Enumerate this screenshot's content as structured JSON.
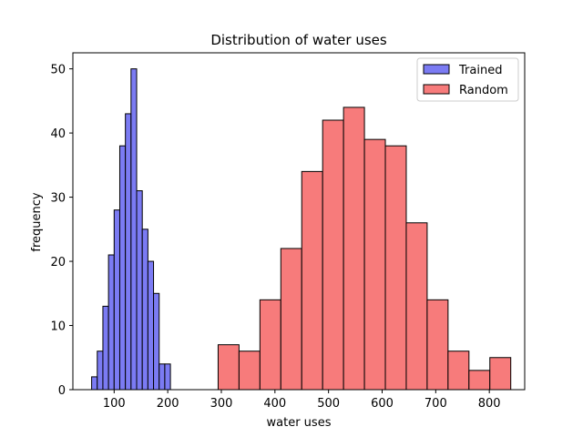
{
  "chart_data": {
    "type": "bar",
    "title": "Distribution of water uses",
    "xlabel": "water uses",
    "ylabel": "frequency",
    "xlim": [
      23,
      866
    ],
    "ylim": [
      0,
      52.5
    ],
    "xticks": [
      100,
      200,
      300,
      400,
      500,
      600,
      700,
      800
    ],
    "yticks": [
      0,
      10,
      20,
      30,
      40,
      50
    ],
    "grid": false,
    "legend_position": "top-right",
    "series": [
      {
        "name": "Trained",
        "color": "#7b7bf3",
        "edgecolor": "#000000",
        "bins": [
          {
            "x0": 58.0,
            "x1": 68.5,
            "count": 2
          },
          {
            "x0": 68.5,
            "x1": 79.0,
            "count": 6
          },
          {
            "x0": 79.0,
            "x1": 89.5,
            "count": 13
          },
          {
            "x0": 89.5,
            "x1": 100.0,
            "count": 21
          },
          {
            "x0": 100.0,
            "x1": 110.5,
            "count": 28
          },
          {
            "x0": 110.5,
            "x1": 121.0,
            "count": 38
          },
          {
            "x0": 121.0,
            "x1": 131.5,
            "count": 43
          },
          {
            "x0": 131.5,
            "x1": 142.0,
            "count": 50
          },
          {
            "x0": 142.0,
            "x1": 152.5,
            "count": 31
          },
          {
            "x0": 152.5,
            "x1": 163.0,
            "count": 25
          },
          {
            "x0": 163.0,
            "x1": 173.5,
            "count": 20
          },
          {
            "x0": 173.5,
            "x1": 184.0,
            "count": 15
          },
          {
            "x0": 184.0,
            "x1": 194.5,
            "count": 4
          },
          {
            "x0": 194.5,
            "x1": 205.0,
            "count": 4
          }
        ]
      },
      {
        "name": "Random",
        "color": "#f77b7b",
        "edgecolor": "#000000",
        "bins": [
          {
            "x0": 294,
            "x1": 333,
            "count": 7
          },
          {
            "x0": 333,
            "x1": 372,
            "count": 6
          },
          {
            "x0": 372,
            "x1": 411,
            "count": 14
          },
          {
            "x0": 411,
            "x1": 450,
            "count": 22
          },
          {
            "x0": 450,
            "x1": 489,
            "count": 34
          },
          {
            "x0": 489,
            "x1": 528,
            "count": 42
          },
          {
            "x0": 528,
            "x1": 567,
            "count": 44
          },
          {
            "x0": 567,
            "x1": 606,
            "count": 39
          },
          {
            "x0": 606,
            "x1": 645,
            "count": 38
          },
          {
            "x0": 645,
            "x1": 684,
            "count": 26
          },
          {
            "x0": 684,
            "x1": 723,
            "count": 14
          },
          {
            "x0": 723,
            "x1": 762,
            "count": 6
          },
          {
            "x0": 762,
            "x1": 801,
            "count": 3
          },
          {
            "x0": 801,
            "x1": 840,
            "count": 5
          }
        ]
      }
    ]
  }
}
